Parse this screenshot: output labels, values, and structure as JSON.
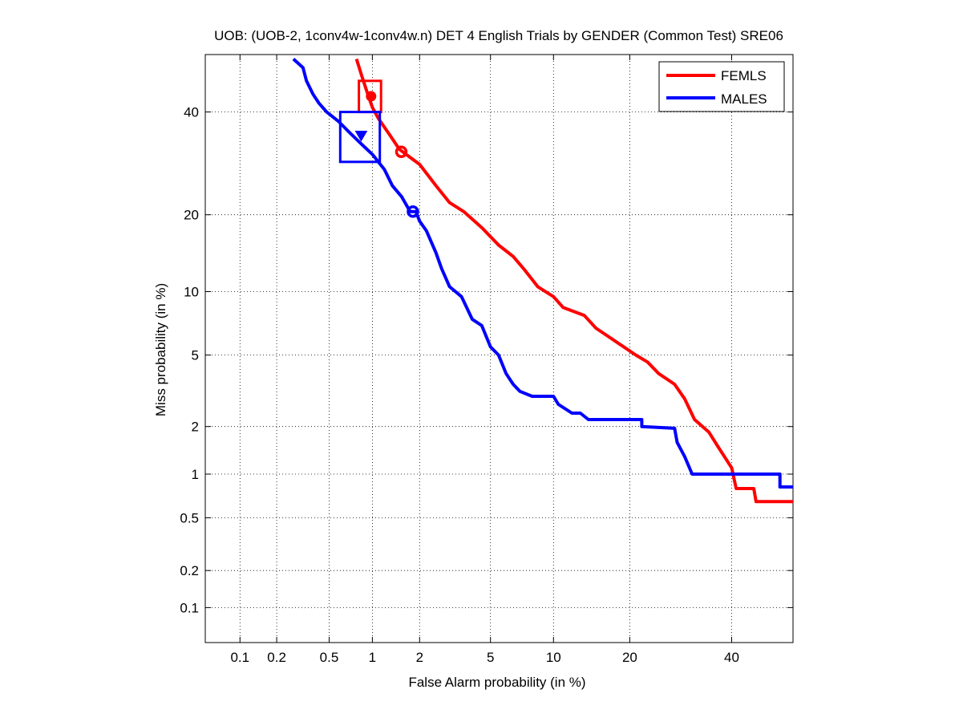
{
  "chart_data": {
    "type": "line",
    "title": "UOB: (UOB-2, 1conv4w-1conv4w.n) DET 4 English Trials by GENDER (Common Test) SRE06",
    "xlabel": "False Alarm probability (in %)",
    "ylabel": "Miss probability (in %)",
    "x_scale": "normal-deviate (probit)",
    "y_scale": "normal-deviate (probit)",
    "xlim": [
      0.05,
      54
    ],
    "ylim": [
      0.05,
      53
    ],
    "x_ticks": [
      0.1,
      0.2,
      0.5,
      1,
      2,
      5,
      10,
      20,
      40
    ],
    "x_tick_labels": [
      "0.1",
      "0.2",
      "0.5",
      "1",
      "2",
      "5",
      "10",
      "20",
      "40"
    ],
    "y_ticks": [
      0.1,
      0.2,
      0.5,
      1,
      2,
      5,
      10,
      20,
      40
    ],
    "y_tick_labels": [
      "0.1",
      "0.2",
      "0.5",
      "1",
      "2",
      "5",
      "10",
      "20",
      "40"
    ],
    "grid": true,
    "legend_position": "top-right",
    "series": [
      {
        "name": "FEMLS",
        "color": "#ff0000",
        "points": [
          [
            0.78,
            52
          ],
          [
            0.85,
            48
          ],
          [
            0.93,
            44
          ],
          [
            1.0,
            41
          ],
          [
            1.1,
            38.5
          ],
          [
            1.3,
            35
          ],
          [
            1.5,
            32
          ],
          [
            1.65,
            31
          ],
          [
            2.0,
            29
          ],
          [
            2.5,
            25
          ],
          [
            3.0,
            22
          ],
          [
            3.6,
            20.5
          ],
          [
            4.5,
            18
          ],
          [
            5.5,
            15.5
          ],
          [
            6.5,
            14
          ],
          [
            7.3,
            12.5
          ],
          [
            8.5,
            10.5
          ],
          [
            10,
            9.5
          ],
          [
            11,
            8.5
          ],
          [
            13.5,
            7.8
          ],
          [
            15,
            6.8
          ],
          [
            18,
            5.8
          ],
          [
            21,
            5.0
          ],
          [
            23,
            4.6
          ],
          [
            25,
            4.0
          ],
          [
            28,
            3.5
          ],
          [
            30,
            2.9
          ],
          [
            32,
            2.2
          ],
          [
            35,
            1.85
          ],
          [
            37,
            1.5
          ],
          [
            40,
            1.1
          ],
          [
            41,
            0.8
          ],
          [
            45,
            0.8
          ],
          [
            45.5,
            0.65
          ],
          [
            54,
            0.65
          ]
        ],
        "dcf_marker": {
          "x": 1.54,
          "y": 31.5,
          "label": "circle"
        },
        "min_marker": {
          "x": 0.98,
          "y": 43.5,
          "label": "dot"
        },
        "confidence_box": {
          "x": [
            0.81,
            1.14
          ],
          "y": [
            40,
            47
          ]
        }
      },
      {
        "name": "MALES",
        "color": "#0000ff",
        "points": [
          [
            0.27,
            52
          ],
          [
            0.32,
            50
          ],
          [
            0.34,
            47
          ],
          [
            0.38,
            44
          ],
          [
            0.42,
            42
          ],
          [
            0.48,
            40
          ],
          [
            0.58,
            38
          ],
          [
            0.7,
            35.5
          ],
          [
            0.85,
            33
          ],
          [
            1.0,
            31
          ],
          [
            1.2,
            28
          ],
          [
            1.35,
            25
          ],
          [
            1.55,
            23
          ],
          [
            1.75,
            20.5
          ],
          [
            1.9,
            20.5
          ],
          [
            2.0,
            19
          ],
          [
            2.2,
            17.5
          ],
          [
            2.5,
            14.5
          ],
          [
            2.7,
            12.5
          ],
          [
            3.0,
            10.5
          ],
          [
            3.5,
            9.5
          ],
          [
            4.0,
            7.5
          ],
          [
            4.5,
            7.0
          ],
          [
            5.0,
            5.5
          ],
          [
            5.5,
            5.0
          ],
          [
            6.0,
            4.0
          ],
          [
            6.5,
            3.5
          ],
          [
            7.0,
            3.2
          ],
          [
            8.0,
            3.0
          ],
          [
            10,
            3.0
          ],
          [
            10.5,
            2.7
          ],
          [
            12,
            2.4
          ],
          [
            13,
            2.4
          ],
          [
            14,
            2.2
          ],
          [
            22,
            2.2
          ],
          [
            22,
            2.0
          ],
          [
            28,
            1.95
          ],
          [
            28.5,
            1.6
          ],
          [
            30,
            1.3
          ],
          [
            31.5,
            1.0
          ],
          [
            51,
            1.0
          ],
          [
            51,
            0.82
          ],
          [
            54,
            0.82
          ]
        ],
        "dcf_marker": {
          "x": 1.82,
          "y": 20.5,
          "label": "circle"
        },
        "min_marker": {
          "x": 0.84,
          "y": 34.8,
          "label": "triangle"
        },
        "confidence_box": {
          "x": [
            0.6,
            1.12
          ],
          "y": [
            29.5,
            40
          ]
        }
      }
    ]
  }
}
